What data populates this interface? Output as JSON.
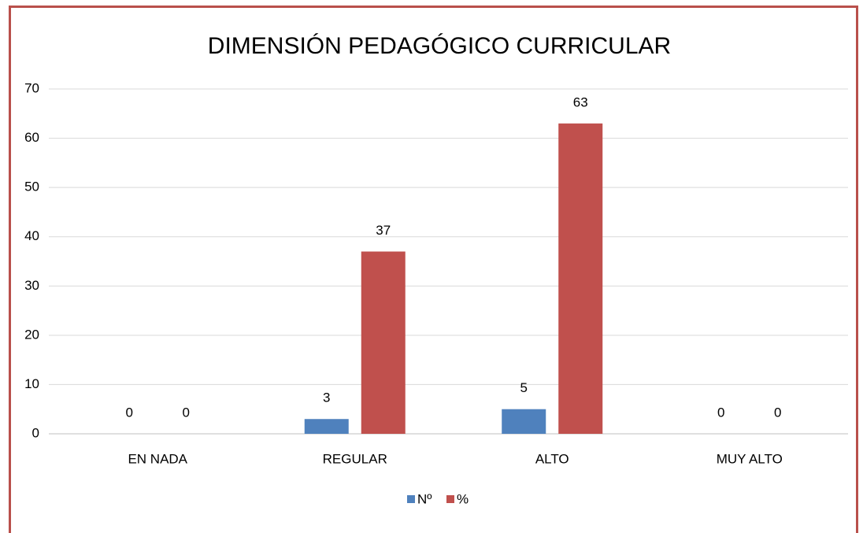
{
  "chart_data": {
    "type": "bar",
    "title": "DIMENSIÓN PEDAGÓGICO CURRICULAR",
    "categories": [
      "EN NADA",
      "REGULAR",
      "ALTO",
      "MUY ALTO"
    ],
    "series": [
      {
        "name": "Nº",
        "color": "#4f81bd",
        "values": [
          0,
          3,
          5,
          0
        ]
      },
      {
        "name": "%",
        "color": "#c0504d",
        "values": [
          0,
          37,
          63,
          0
        ]
      }
    ],
    "ylim": [
      0,
      70
    ],
    "yticks": [
      0,
      10,
      20,
      30,
      40,
      50,
      60,
      70
    ],
    "grid": true,
    "legend": "bottom"
  }
}
